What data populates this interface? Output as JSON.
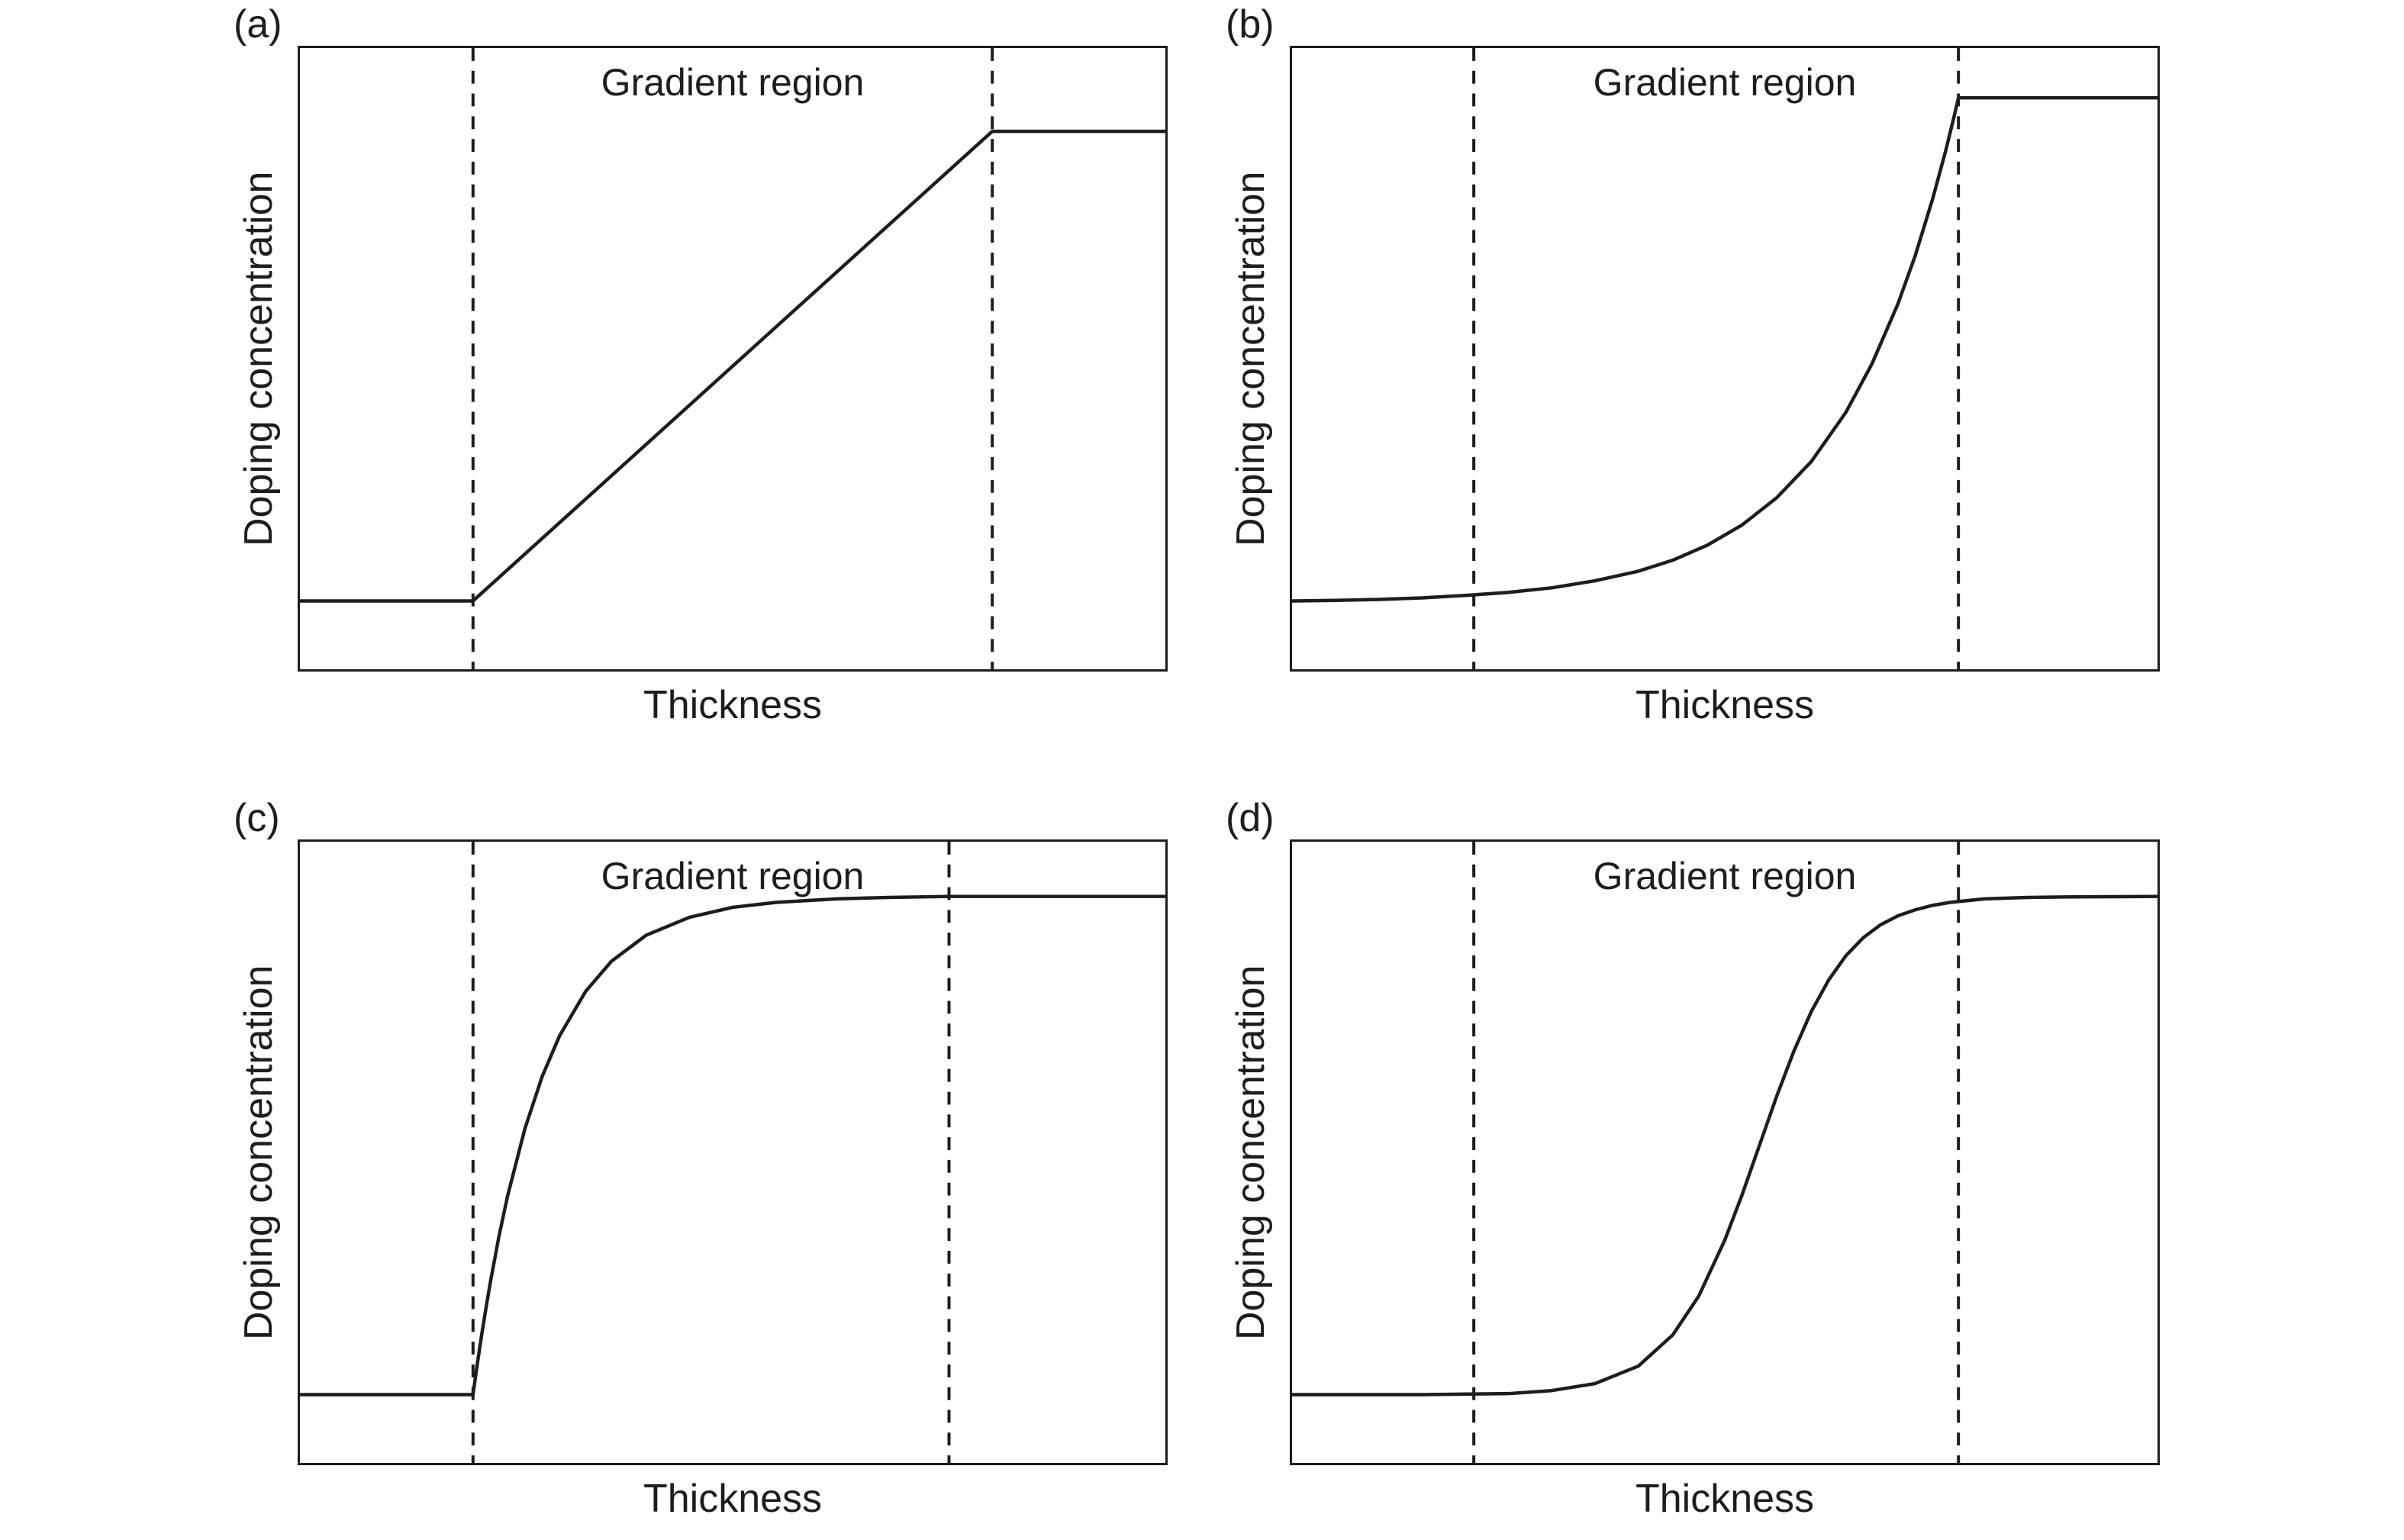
{
  "figure": {
    "background": "#ffffff",
    "ink_color": "#1d1d1b",
    "layout": "2x2 grid of schematic doping-profile plots"
  },
  "chart_data": [
    {
      "type": "line",
      "panel_label": "(a)",
      "annotation": "Gradient region",
      "xlabel": "Thickness",
      "ylabel": "Doping concentration",
      "profile": "linear gradient",
      "x_axis_ticks": [],
      "y_axis_ticks": [],
      "x_range": [
        0,
        1
      ],
      "gradient_region_x": [
        0.2,
        0.8
      ],
      "plateau_frac": {
        "low": 0.89,
        "high": 0.134
      },
      "points": [
        [
          0,
          0
        ],
        [
          0.2,
          0
        ],
        [
          0.8,
          1
        ],
        [
          1,
          1
        ]
      ]
    },
    {
      "type": "line",
      "panel_label": "(b)",
      "annotation": "Gradient region",
      "xlabel": "Thickness",
      "ylabel": "Doping concentration",
      "profile": "exponential gradient",
      "x_axis_ticks": [],
      "y_axis_ticks": [],
      "x_range": [
        0,
        1
      ],
      "gradient_region_x": [
        0.21,
        0.77
      ],
      "plateau_frac": {
        "low": 0.89,
        "high": 0.08
      },
      "points": [
        [
          0,
          0
        ],
        [
          0.05,
          0.001
        ],
        [
          0.1,
          0.003
        ],
        [
          0.15,
          0.006
        ],
        [
          0.2,
          0.011
        ],
        [
          0.25,
          0.017
        ],
        [
          0.3,
          0.026
        ],
        [
          0.35,
          0.04
        ],
        [
          0.4,
          0.059
        ],
        [
          0.44,
          0.081
        ],
        [
          0.48,
          0.111
        ],
        [
          0.52,
          0.151
        ],
        [
          0.56,
          0.205
        ],
        [
          0.6,
          0.277
        ],
        [
          0.64,
          0.375
        ],
        [
          0.67,
          0.471
        ],
        [
          0.7,
          0.59
        ],
        [
          0.72,
          0.686
        ],
        [
          0.74,
          0.798
        ],
        [
          0.755,
          0.893
        ],
        [
          0.765,
          0.963
        ],
        [
          0.77,
          1
        ],
        [
          1,
          1
        ]
      ]
    },
    {
      "type": "line",
      "panel_label": "(c)",
      "annotation": "Gradient region",
      "xlabel": "Thickness",
      "ylabel": "Doping concentration",
      "profile": "saturating (logarithmic-like) gradient",
      "x_axis_ticks": [],
      "y_axis_ticks": [],
      "x_range": [
        0,
        1
      ],
      "gradient_region_x": [
        0.2,
        0.75
      ],
      "plateau_frac": {
        "low": 0.89,
        "high": 0.088
      },
      "points": [
        [
          0,
          0
        ],
        [
          0.2,
          0
        ],
        [
          0.205,
          0.062
        ],
        [
          0.21,
          0.12
        ],
        [
          0.215,
          0.174
        ],
        [
          0.22,
          0.225
        ],
        [
          0.23,
          0.318
        ],
        [
          0.24,
          0.399
        ],
        [
          0.26,
          0.534
        ],
        [
          0.28,
          0.639
        ],
        [
          0.3,
          0.72
        ],
        [
          0.33,
          0.809
        ],
        [
          0.36,
          0.87
        ],
        [
          0.4,
          0.922
        ],
        [
          0.45,
          0.958
        ],
        [
          0.5,
          0.978
        ],
        [
          0.55,
          0.988
        ],
        [
          0.62,
          0.995
        ],
        [
          0.68,
          0.998
        ],
        [
          0.75,
          1
        ],
        [
          1,
          1
        ]
      ]
    },
    {
      "type": "line",
      "panel_label": "(d)",
      "annotation": "Gradient region",
      "xlabel": "Thickness",
      "ylabel": "Doping concentration",
      "profile": "sigmoidal gradient",
      "x_axis_ticks": [],
      "y_axis_ticks": [],
      "x_range": [
        0,
        1
      ],
      "gradient_region_x": [
        0.21,
        0.77
      ],
      "plateau_frac": {
        "low": 0.89,
        "high": 0.088
      },
      "points": [
        [
          0,
          0
        ],
        [
          0.15,
          0
        ],
        [
          0.25,
          0.002
        ],
        [
          0.3,
          0.008
        ],
        [
          0.35,
          0.022
        ],
        [
          0.4,
          0.057
        ],
        [
          0.44,
          0.12
        ],
        [
          0.47,
          0.198
        ],
        [
          0.5,
          0.31
        ],
        [
          0.52,
          0.401
        ],
        [
          0.54,
          0.5
        ],
        [
          0.56,
          0.599
        ],
        [
          0.58,
          0.69
        ],
        [
          0.6,
          0.769
        ],
        [
          0.62,
          0.832
        ],
        [
          0.64,
          0.881
        ],
        [
          0.66,
          0.917
        ],
        [
          0.68,
          0.943
        ],
        [
          0.7,
          0.961
        ],
        [
          0.72,
          0.973
        ],
        [
          0.74,
          0.982
        ],
        [
          0.76,
          0.988
        ],
        [
          0.8,
          0.995
        ],
        [
          0.85,
          0.998
        ],
        [
          0.9,
          0.999
        ],
        [
          1,
          1
        ]
      ]
    }
  ]
}
